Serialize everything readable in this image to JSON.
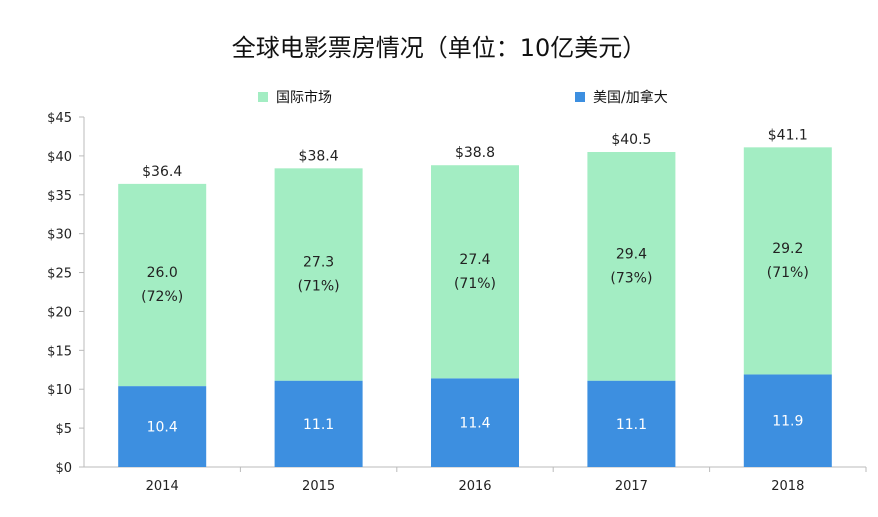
{
  "chart_data": {
    "type": "bar",
    "stacked": true,
    "title": "全球电影票房情况（单位：10亿美元）",
    "categories": [
      "2014",
      "2015",
      "2016",
      "2017",
      "2018"
    ],
    "series": [
      {
        "name": "美国/加拿大",
        "values": [
          10.4,
          11.1,
          11.4,
          11.1,
          11.9
        ],
        "labels": [
          "10.4",
          "11.1",
          "11.4",
          "11.1",
          "11.9"
        ],
        "color": "#3d8fe0",
        "label_color": "#ffffff"
      },
      {
        "name": "国际市场",
        "values": [
          26.0,
          27.3,
          27.4,
          29.4,
          29.2
        ],
        "labels": [
          "26.0",
          "27.3",
          "27.4",
          "29.4",
          "29.2"
        ],
        "share_labels": [
          "(72%)",
          "(71%)",
          "(71%)",
          "(73%)",
          "(71%)"
        ],
        "color": "#a3edc3",
        "label_color": "#222222"
      }
    ],
    "totals": [
      "$36.4",
      "$38.4",
      "$38.8",
      "$40.5",
      "$41.1"
    ],
    "total_values": [
      36.4,
      38.4,
      38.8,
      40.5,
      41.1
    ],
    "y_ticks": [
      "$0",
      "$5",
      "$10",
      "$15",
      "$20",
      "$25",
      "$30",
      "$35",
      "$40",
      "$45"
    ],
    "ylim": [
      0,
      45
    ],
    "grid": false,
    "legend_position": "top"
  }
}
